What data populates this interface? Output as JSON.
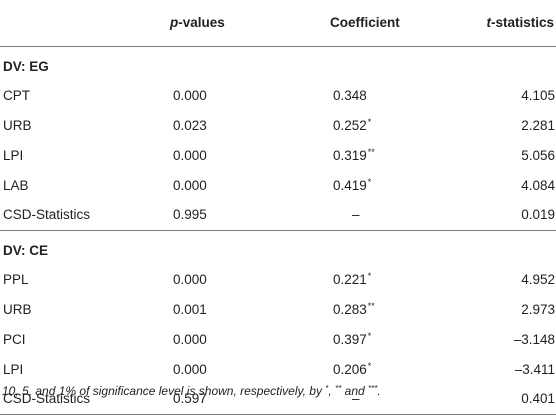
{
  "headers": {
    "col1": "",
    "col2_italic": "p",
    "col2_rest": "-values",
    "col3": "Coefficient",
    "col4_italic": "t",
    "col4_rest": "-statistics"
  },
  "sections": [
    {
      "title": "DV: EG",
      "rows": [
        {
          "label": "CPT",
          "p": "0.000",
          "coef": "0.348",
          "stars": "",
          "t": "4.105"
        },
        {
          "label": "URB",
          "p": "0.023",
          "coef": "0.252",
          "stars": "*",
          "t": "2.281"
        },
        {
          "label": "LPI",
          "p": "0.000",
          "coef": "0.319",
          "stars": "**",
          "t": "5.056"
        },
        {
          "label": "LAB",
          "p": "0.000",
          "coef": "0.419",
          "stars": "*",
          "t": "4.084"
        },
        {
          "label": "CSD-Statistics",
          "p": "0.995",
          "coef": "–",
          "stars": "",
          "t": "0.019"
        }
      ]
    },
    {
      "title": "DV: CE",
      "rows": [
        {
          "label": "PPL",
          "p": "0.000",
          "coef": "0.221",
          "stars": "*",
          "t": "4.952"
        },
        {
          "label": "URB",
          "p": "0.001",
          "coef": "0.283",
          "stars": "**",
          "t": "2.973"
        },
        {
          "label": "PCI",
          "p": "0.000",
          "coef": "0.397",
          "stars": "*",
          "t": "–3.148"
        },
        {
          "label": "LPI",
          "p": "0.000",
          "coef": "0.206",
          "stars": "*",
          "t": "–3.411"
        },
        {
          "label": "CSD-Statistics",
          "p": "0.597",
          "coef": "–",
          "stars": "",
          "t": "0.401"
        }
      ]
    }
  ],
  "footnote": {
    "text1": "10, 5, and 1% of significance level is shown, respectively, by ",
    "s1": "*",
    "text2": ", ",
    "s2": "**",
    "text3": " and ",
    "s3": "***",
    "text4": "."
  }
}
